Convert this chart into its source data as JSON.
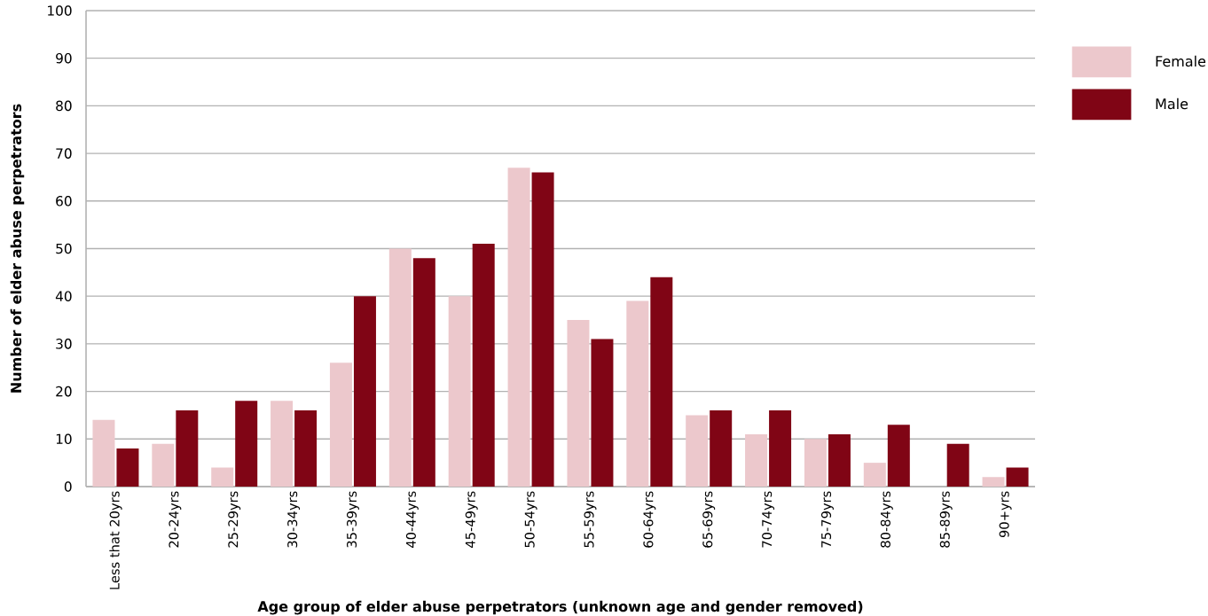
{
  "chart_data": {
    "type": "bar",
    "xlabel": "Age group of elder abuse perpetrators (unknown age and gender removed)",
    "ylabel": "Number of elder abuse perpetrators",
    "categories": [
      "Less that 20yrs",
      "20-24yrs",
      "25-29yrs",
      "30-34yrs",
      "35-39yrs",
      "40-44yrs",
      "45-49yrs",
      "50-54yrs",
      "55-59yrs",
      "60-64yrs",
      "65-69yrs",
      "70-74yrs",
      "75-79yrs",
      "80-84yrs",
      "85-89yrs",
      "90+yrs"
    ],
    "series": [
      {
        "name": "Female",
        "color": "#ecc8cc",
        "values": [
          14,
          9,
          4,
          18,
          26,
          50,
          40,
          67,
          35,
          39,
          15,
          11,
          10,
          5,
          0,
          2
        ]
      },
      {
        "name": "Male",
        "color": "#800515",
        "values": [
          8,
          16,
          18,
          16,
          40,
          48,
          51,
          66,
          31,
          44,
          16,
          16,
          11,
          13,
          9,
          4
        ]
      }
    ],
    "ylim": [
      0,
      100
    ],
    "yticks": [
      0,
      10,
      20,
      30,
      40,
      50,
      60,
      70,
      80,
      90,
      100
    ],
    "grid": "y",
    "legend": "right"
  }
}
